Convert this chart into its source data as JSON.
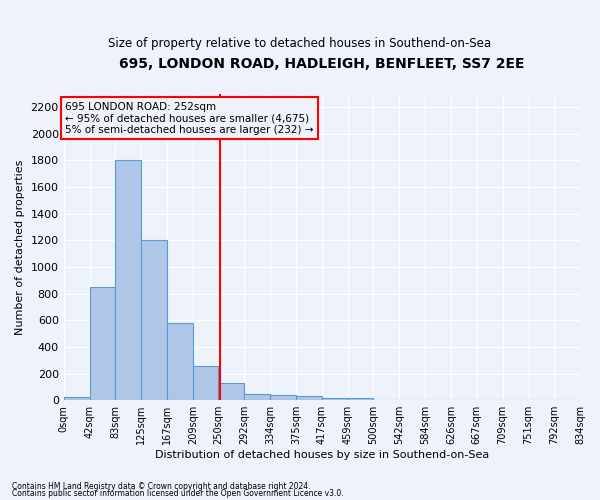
{
  "title1": "695, LONDON ROAD, HADLEIGH, BENFLEET, SS7 2EE",
  "title2": "Size of property relative to detached houses in Southend-on-Sea",
  "xlabel": "Distribution of detached houses by size in Southend-on-Sea",
  "ylabel": "Number of detached properties",
  "footnote1": "Contains HM Land Registry data © Crown copyright and database right 2024.",
  "footnote2": "Contains public sector information licensed under the Open Government Licence v3.0.",
  "annotation_title": "695 LONDON ROAD: 252sqm",
  "annotation_line1": "← 95% of detached houses are smaller (4,675)",
  "annotation_line2": "5% of semi-detached houses are larger (232) →",
  "bar_edges": [
    0,
    42,
    83,
    125,
    167,
    209,
    250,
    292,
    334,
    375,
    417,
    459,
    500,
    542,
    584,
    626,
    667,
    709,
    751,
    792,
    834
  ],
  "bar_heights": [
    25,
    850,
    1800,
    1200,
    580,
    255,
    130,
    45,
    40,
    30,
    20,
    15,
    0,
    0,
    0,
    0,
    0,
    0,
    0,
    0
  ],
  "bar_color": "#aec6e8",
  "bar_edge_color": "#5b9bd5",
  "vline_x": 252,
  "vline_color": "red",
  "annotation_box_color": "red",
  "ylim": [
    0,
    2300
  ],
  "yticks": [
    0,
    200,
    400,
    600,
    800,
    1000,
    1200,
    1400,
    1600,
    1800,
    2000,
    2200
  ],
  "bg_color": "#eef3fb",
  "grid_color": "#ffffff",
  "tick_labels": [
    "0sqm",
    "42sqm",
    "83sqm",
    "125sqm",
    "167sqm",
    "209sqm",
    "250sqm",
    "292sqm",
    "334sqm",
    "375sqm",
    "417sqm",
    "459sqm",
    "500sqm",
    "542sqm",
    "584sqm",
    "626sqm",
    "667sqm",
    "709sqm",
    "751sqm",
    "792sqm",
    "834sqm"
  ]
}
